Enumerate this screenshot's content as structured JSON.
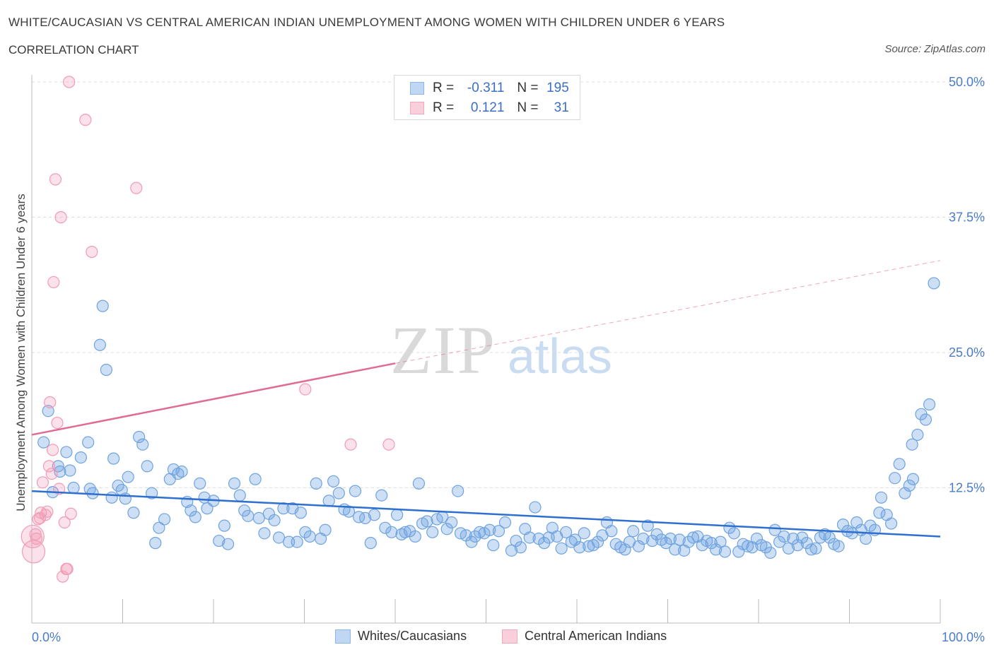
{
  "header": {
    "title": "WHITE/CAUCASIAN VS CENTRAL AMERICAN INDIAN UNEMPLOYMENT AMONG WOMEN WITH CHILDREN UNDER 6 YEARS",
    "subtitle": "CORRELATION CHART",
    "source": "Source: ZipAtlas.com"
  },
  "legend": {
    "rows": [
      {
        "r_label": "R =",
        "r_value": "-0.311",
        "n_label": "N =",
        "n_value": "195",
        "color": "#8db6ea"
      },
      {
        "r_label": "R =",
        "r_value": "0.121",
        "n_label": "N =",
        "n_value": "31",
        "color": "#f4a8bf"
      }
    ]
  },
  "bottom_legend": {
    "items": [
      {
        "label": "Whites/Caucasians",
        "color": "#8db6ea"
      },
      {
        "label": "Central American Indians",
        "color": "#f4a8bf"
      }
    ]
  },
  "watermark": {
    "zip": "ZIP",
    "atlas": "atlas"
  },
  "chart_data": {
    "type": "scatter",
    "title": "WHITE/CAUCASIAN VS CENTRAL AMERICAN INDIAN UNEMPLOYMENT AMONG WOMEN WITH CHILDREN UNDER 6 YEARS",
    "xlabel": "",
    "ylabel": "Unemployment Among Women with Children Under 6 years",
    "xlim": [
      0,
      100
    ],
    "ylim": [
      0,
      50
    ],
    "y_ticks": [
      {
        "value": 12.5,
        "label": "12.5%"
      },
      {
        "value": 25,
        "label": "25.0%"
      },
      {
        "value": 37.5,
        "label": "37.5%"
      },
      {
        "value": 50,
        "label": "50.0%"
      }
    ],
    "x_tick_labels": [
      {
        "value": 0,
        "label": "0.0%"
      },
      {
        "value": 100,
        "label": "100.0%"
      }
    ],
    "grid": true,
    "legend_position": "top-center",
    "series": [
      {
        "name": "Whites/Caucasians",
        "color": "#6fa3e0",
        "trend": {
          "x": [
            0,
            100
          ],
          "y": [
            12.2,
            8.0
          ],
          "color": "#2e6fd0"
        },
        "points": [
          [
            1.3,
            16.7
          ],
          [
            1.8,
            19.6
          ],
          [
            2.3,
            12.1
          ],
          [
            2.9,
            14.5
          ],
          [
            3.1,
            14.0
          ],
          [
            3.8,
            15.8
          ],
          [
            4.2,
            14.1
          ],
          [
            4.6,
            12.5
          ],
          [
            5.4,
            15.3
          ],
          [
            6.2,
            16.7
          ],
          [
            6.4,
            12.4
          ],
          [
            6.7,
            12.0
          ],
          [
            7.5,
            25.7
          ],
          [
            7.8,
            29.3
          ],
          [
            8.2,
            23.4
          ],
          [
            8.8,
            11.6
          ],
          [
            9.0,
            15.2
          ],
          [
            9.5,
            12.7
          ],
          [
            9.9,
            12.3
          ],
          [
            10.3,
            11.5
          ],
          [
            10.6,
            13.5
          ],
          [
            11.2,
            10.2
          ],
          [
            11.8,
            17.2
          ],
          [
            12.2,
            16.5
          ],
          [
            12.7,
            14.5
          ],
          [
            13.2,
            12.0
          ],
          [
            13.6,
            7.4
          ],
          [
            14.0,
            8.8
          ],
          [
            14.6,
            9.6
          ],
          [
            15.2,
            13.3
          ],
          [
            15.6,
            14.2
          ],
          [
            16.1,
            13.8
          ],
          [
            16.5,
            14.0
          ],
          [
            17.1,
            11.2
          ],
          [
            17.5,
            10.4
          ],
          [
            18.0,
            9.8
          ],
          [
            18.5,
            12.9
          ],
          [
            19.0,
            11.6
          ],
          [
            19.3,
            10.6
          ],
          [
            20.0,
            11.3
          ],
          [
            20.6,
            7.6
          ],
          [
            21.2,
            9.0
          ],
          [
            21.6,
            7.3
          ],
          [
            22.3,
            12.9
          ],
          [
            22.9,
            11.8
          ],
          [
            23.4,
            10.4
          ],
          [
            23.8,
            9.9
          ],
          [
            24.6,
            13.3
          ],
          [
            25.0,
            9.7
          ],
          [
            25.6,
            8.3
          ],
          [
            26.1,
            10.1
          ],
          [
            26.7,
            9.5
          ],
          [
            27.2,
            7.9
          ],
          [
            27.7,
            10.6
          ],
          [
            28.3,
            7.5
          ],
          [
            28.7,
            10.6
          ],
          [
            29.2,
            7.5
          ],
          [
            29.6,
            10.2
          ],
          [
            30.1,
            8.4
          ],
          [
            30.6,
            8.0
          ],
          [
            31.3,
            12.9
          ],
          [
            31.8,
            7.8
          ],
          [
            32.3,
            8.6
          ],
          [
            32.7,
            11.3
          ],
          [
            33.2,
            13.1
          ],
          [
            33.8,
            12.0
          ],
          [
            34.4,
            10.5
          ],
          [
            34.9,
            10.3
          ],
          [
            35.6,
            12.2
          ],
          [
            36.0,
            9.8
          ],
          [
            36.7,
            9.7
          ],
          [
            37.3,
            7.4
          ],
          [
            37.7,
            10.0
          ],
          [
            38.5,
            11.8
          ],
          [
            38.9,
            8.8
          ],
          [
            39.6,
            8.4
          ],
          [
            40.2,
            10.0
          ],
          [
            40.7,
            8.2
          ],
          [
            41.1,
            8.4
          ],
          [
            41.6,
            8.5
          ],
          [
            42.2,
            8.0
          ],
          [
            42.6,
            12.9
          ],
          [
            43.0,
            9.2
          ],
          [
            43.5,
            9.4
          ],
          [
            44.1,
            8.4
          ],
          [
            44.6,
            9.6
          ],
          [
            45.2,
            9.8
          ],
          [
            45.7,
            8.7
          ],
          [
            46.2,
            9.3
          ],
          [
            46.9,
            12.2
          ],
          [
            47.2,
            8.3
          ],
          [
            47.8,
            8.1
          ],
          [
            48.4,
            7.5
          ],
          [
            48.8,
            8.0
          ],
          [
            49.3,
            8.4
          ],
          [
            49.8,
            8.3
          ],
          [
            50.4,
            8.6
          ],
          [
            50.8,
            7.2
          ],
          [
            51.4,
            8.5
          ],
          [
            52.1,
            9.3
          ],
          [
            52.8,
            6.7
          ],
          [
            53.3,
            7.6
          ],
          [
            53.8,
            7.0
          ],
          [
            54.3,
            8.7
          ],
          [
            54.8,
            7.9
          ],
          [
            55.4,
            10.7
          ],
          [
            55.8,
            7.8
          ],
          [
            56.4,
            7.4
          ],
          [
            56.9,
            7.9
          ],
          [
            57.3,
            8.8
          ],
          [
            57.8,
            8.0
          ],
          [
            58.3,
            6.9
          ],
          [
            58.8,
            8.4
          ],
          [
            59.4,
            7.5
          ],
          [
            59.8,
            7.7
          ],
          [
            60.3,
            7.0
          ],
          [
            60.8,
            8.3
          ],
          [
            61.3,
            7.1
          ],
          [
            61.8,
            7.2
          ],
          [
            62.3,
            7.5
          ],
          [
            62.8,
            8.1
          ],
          [
            63.3,
            9.3
          ],
          [
            63.8,
            8.5
          ],
          [
            64.3,
            7.3
          ],
          [
            64.8,
            7.0
          ],
          [
            65.3,
            6.8
          ],
          [
            65.8,
            7.5
          ],
          [
            66.2,
            8.5
          ],
          [
            66.8,
            7.1
          ],
          [
            67.3,
            7.8
          ],
          [
            67.8,
            9.0
          ],
          [
            68.3,
            7.6
          ],
          [
            68.8,
            8.2
          ],
          [
            69.3,
            7.7
          ],
          [
            69.8,
            7.4
          ],
          [
            70.3,
            7.8
          ],
          [
            70.8,
            6.8
          ],
          [
            71.3,
            7.7
          ],
          [
            71.8,
            6.7
          ],
          [
            72.3,
            7.5
          ],
          [
            72.8,
            7.9
          ],
          [
            73.3,
            8.0
          ],
          [
            73.8,
            7.2
          ],
          [
            74.3,
            7.6
          ],
          [
            74.8,
            7.4
          ],
          [
            75.3,
            6.8
          ],
          [
            75.8,
            7.5
          ],
          [
            76.3,
            6.6
          ],
          [
            76.8,
            8.8
          ],
          [
            77.3,
            8.3
          ],
          [
            77.8,
            6.6
          ],
          [
            78.3,
            7.3
          ],
          [
            78.8,
            7.1
          ],
          [
            79.3,
            7.0
          ],
          [
            79.8,
            7.8
          ],
          [
            80.3,
            7.2
          ],
          [
            80.8,
            7.0
          ],
          [
            81.3,
            6.5
          ],
          [
            81.8,
            8.6
          ],
          [
            82.3,
            7.5
          ],
          [
            82.8,
            8.0
          ],
          [
            83.3,
            6.9
          ],
          [
            83.8,
            7.8
          ],
          [
            84.3,
            7.2
          ],
          [
            84.8,
            7.9
          ],
          [
            85.3,
            7.4
          ],
          [
            85.8,
            6.8
          ],
          [
            86.3,
            6.9
          ],
          [
            86.8,
            7.9
          ],
          [
            87.3,
            8.2
          ],
          [
            87.8,
            7.9
          ],
          [
            88.3,
            7.3
          ],
          [
            88.8,
            7.1
          ],
          [
            89.3,
            9.1
          ],
          [
            89.8,
            8.5
          ],
          [
            90.3,
            8.3
          ],
          [
            90.8,
            9.3
          ],
          [
            91.3,
            8.6
          ],
          [
            91.8,
            7.8
          ],
          [
            92.3,
            9.0
          ],
          [
            92.8,
            8.6
          ],
          [
            93.3,
            10.2
          ],
          [
            93.5,
            11.6
          ],
          [
            94.1,
            10.0
          ],
          [
            94.6,
            9.2
          ],
          [
            95.0,
            13.4
          ],
          [
            95.5,
            14.7
          ],
          [
            96.1,
            12.0
          ],
          [
            96.6,
            12.7
          ],
          [
            97.0,
            13.3
          ],
          [
            96.9,
            16.5
          ],
          [
            97.5,
            17.4
          ],
          [
            97.9,
            19.3
          ],
          [
            98.4,
            18.8
          ],
          [
            98.8,
            20.2
          ],
          [
            99.3,
            31.4
          ]
        ]
      },
      {
        "name": "Central American Indians",
        "color": "#f29bb6",
        "trend": {
          "x": [
            0,
            40
          ],
          "y": [
            17.4,
            24.0
          ],
          "color": "#e06b93",
          "dashed_extension": {
            "x": [
              40,
              100
            ],
            "y": [
              24.0,
              33.5
            ]
          }
        },
        "points": [
          [
            0.2,
            6.6
          ],
          [
            0.4,
            8.2
          ],
          [
            0.5,
            7.8
          ],
          [
            0.7,
            9.6
          ],
          [
            0.9,
            9.7
          ],
          [
            1.0,
            10.2
          ],
          [
            1.2,
            13.0
          ],
          [
            1.5,
            10.0
          ],
          [
            1.7,
            10.3
          ],
          [
            1.9,
            14.5
          ],
          [
            2.0,
            20.4
          ],
          [
            2.2,
            13.8
          ],
          [
            2.3,
            16.0
          ],
          [
            2.4,
            31.5
          ],
          [
            2.6,
            41.0
          ],
          [
            2.8,
            18.5
          ],
          [
            3.0,
            12.4
          ],
          [
            3.2,
            37.5
          ],
          [
            3.4,
            4.3
          ],
          [
            3.6,
            9.3
          ],
          [
            3.8,
            5.0
          ],
          [
            3.9,
            5.0
          ],
          [
            4.1,
            50.0
          ],
          [
            4.3,
            10.1
          ],
          [
            5.9,
            46.5
          ],
          [
            6.6,
            34.3
          ],
          [
            11.5,
            40.2
          ],
          [
            30.1,
            21.6
          ],
          [
            35.1,
            16.5
          ],
          [
            39.3,
            16.5
          ],
          [
            0.1,
            8.0
          ]
        ]
      }
    ]
  }
}
